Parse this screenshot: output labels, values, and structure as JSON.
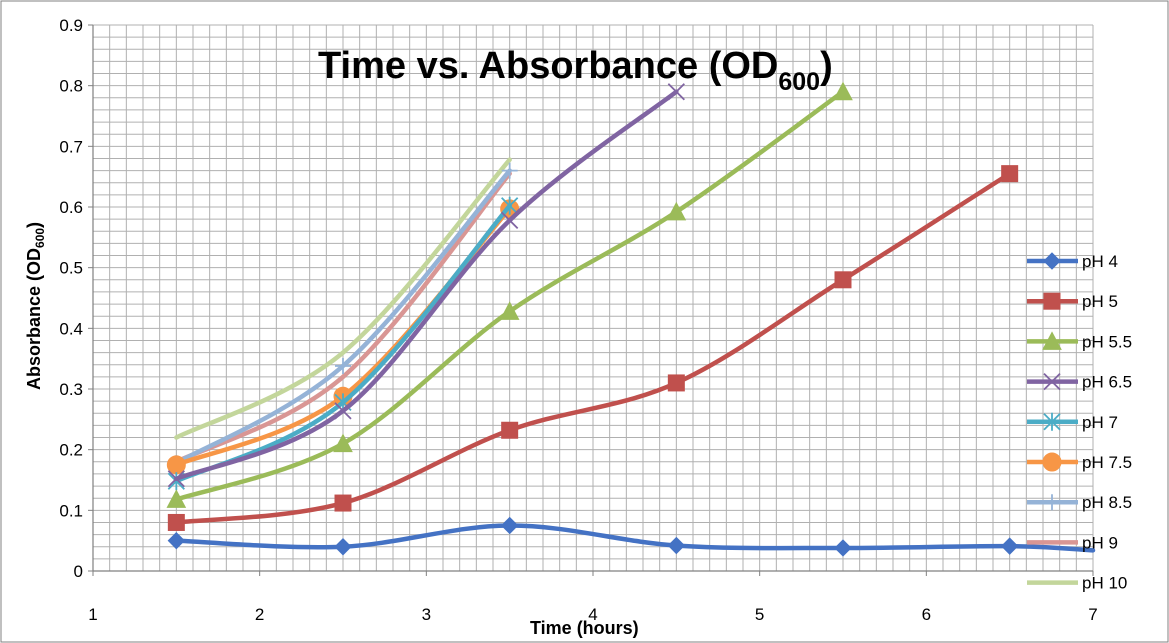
{
  "chart_data": {
    "type": "line",
    "title": "Time vs. Absorbance (OD",
    "title_subscript": "600",
    "title_suffix": ")",
    "xlabel": "Time (hours)",
    "ylabel": "Absorbance (OD",
    "ylabel_subscript": "600",
    "ylabel_suffix": ")",
    "xlim": [
      1,
      7
    ],
    "ylim": [
      0,
      0.9
    ],
    "x_ticks": [
      "1",
      "2",
      "3",
      "4",
      "5",
      "6",
      "7"
    ],
    "y_ticks": [
      "0",
      "0.1",
      "0.2",
      "0.3",
      "0.4",
      "0.5",
      "0.6",
      "0.7",
      "0.8",
      "0.9"
    ],
    "grid": true,
    "legend_position": "right",
    "series": [
      {
        "name": "pH 4",
        "color": "#4472C4",
        "marker": "diamond",
        "x": [
          1.5,
          2.5,
          3.5,
          4.5,
          5.5,
          6.5,
          7
        ],
        "y": [
          0.05,
          0.04,
          0.075,
          0.042,
          0.038,
          0.041,
          0.034
        ]
      },
      {
        "name": "pH 5",
        "color": "#C0504D",
        "marker": "square",
        "x": [
          1.5,
          2.5,
          3.5,
          4.5,
          5.5,
          6.5
        ],
        "y": [
          0.08,
          0.112,
          0.232,
          0.31,
          0.48,
          0.655
        ]
      },
      {
        "name": "pH 5.5",
        "color": "#9BBB59",
        "marker": "triangle",
        "x": [
          1.5,
          2.5,
          3.5,
          4.5,
          5.5
        ],
        "y": [
          0.118,
          0.21,
          0.428,
          0.592,
          0.79
        ]
      },
      {
        "name": "pH 6.5",
        "color": "#8064A2",
        "marker": "x",
        "x": [
          1.5,
          2.5,
          3.5,
          4.5
        ],
        "y": [
          0.152,
          0.264,
          0.578,
          0.79
        ]
      },
      {
        "name": "pH 7",
        "color": "#4BACC6",
        "marker": "star",
        "x": [
          1.5,
          2.5,
          3.5
        ],
        "y": [
          0.148,
          0.278,
          0.602
        ]
      },
      {
        "name": "pH 7.5",
        "color": "#F79646",
        "marker": "circle",
        "x": [
          1.5,
          2.5,
          3.5
        ],
        "y": [
          0.175,
          0.288,
          0.597
        ]
      },
      {
        "name": "pH 8.5",
        "color": "#95B3D7",
        "marker": "plus",
        "x": [
          1.5,
          2.5,
          3.5
        ],
        "y": [
          0.178,
          0.338,
          0.66
        ]
      },
      {
        "name": "pH 9",
        "color": "#D99694",
        "marker": "none",
        "x": [
          1.5,
          2.5,
          3.5
        ],
        "y": [
          0.18,
          0.32,
          0.655
        ]
      },
      {
        "name": "pH 10",
        "color": "#C3D69B",
        "marker": "none",
        "x": [
          1.5,
          2.5,
          3.5
        ],
        "y": [
          0.22,
          0.36,
          0.678
        ]
      }
    ]
  }
}
